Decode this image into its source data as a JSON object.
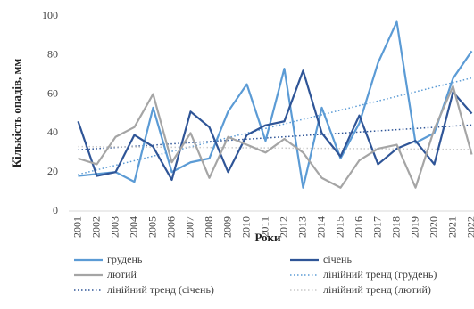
{
  "chart_data": {
    "type": "line",
    "x_label": "Роки",
    "y_label": "Кількість опадів, мм",
    "categories": [
      "2001",
      "2002",
      "2003",
      "2004",
      "2005",
      "2006",
      "2007",
      "2008",
      "2009",
      "2010",
      "2011",
      "2012",
      "2013",
      "2014",
      "2015",
      "2016",
      "2017",
      "2018",
      "2019",
      "2020",
      "2021",
      "2022"
    ],
    "series": [
      {
        "name": "грудень",
        "color": "#5b9bd5",
        "values": [
          18,
          19,
          20,
          15,
          53,
          20,
          25,
          27,
          51,
          65,
          36,
          73,
          12,
          53,
          27,
          45,
          76,
          97,
          35,
          40,
          68,
          82
        ]
      },
      {
        "name": "січень",
        "color": "#2f5597",
        "values": [
          46,
          18,
          20,
          39,
          33,
          16,
          51,
          43,
          20,
          39,
          44,
          46,
          72,
          40,
          28,
          49,
          24,
          32,
          36,
          24,
          61,
          50
        ]
      },
      {
        "name": "лютий",
        "color": "#a5a5a5",
        "values": [
          27,
          24,
          38,
          43,
          60,
          25,
          40,
          17,
          38,
          34,
          30,
          37,
          30,
          17,
          12,
          26,
          32,
          34,
          12,
          42,
          64,
          29
        ]
      }
    ],
    "trendlines": [
      {
        "name": "лінійний тренд (грудень)",
        "color": "#5b9bd5",
        "of": "грудень"
      },
      {
        "name": "лінійний тренд (січень)",
        "color": "#2f5597",
        "of": "січень"
      },
      {
        "name": "лінійний тренд (лютий)",
        "color": "#c9c9c9",
        "of": "лютий"
      }
    ],
    "ylim": [
      0,
      100
    ],
    "yticks": [
      0,
      20,
      40,
      60,
      80,
      100
    ]
  }
}
